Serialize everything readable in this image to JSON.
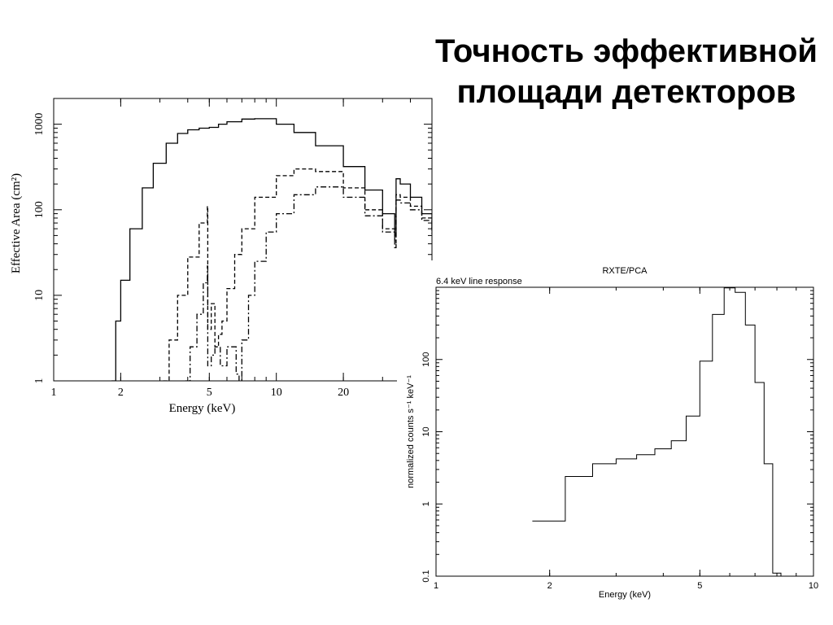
{
  "slide": {
    "title_line1": "Точность эффективной",
    "title_line2": "площади детекторов"
  },
  "chart_data": [
    {
      "type": "line",
      "title": "",
      "xlabel": "Energy (keV)",
      "ylabel": "Effective Area (cm²)",
      "xscale": "log",
      "yscale": "log",
      "xlim": [
        1,
        50
      ],
      "ylim": [
        1,
        2000
      ],
      "xticks": [
        1,
        2,
        5,
        10,
        20
      ],
      "yticks": [
        1,
        10,
        100,
        1000
      ],
      "grid": false,
      "series": [
        {
          "style": "solid",
          "x": [
            1.82,
            1.9,
            2.0,
            2.2,
            2.5,
            2.8,
            3.2,
            3.6,
            4.0,
            4.5,
            5.0,
            5.5,
            6.0,
            7.0,
            8.0,
            10.0,
            12.0,
            15.0,
            20.0,
            25.0,
            30.0,
            34.0,
            34.5,
            36.0,
            40.0,
            45.0,
            50.0
          ],
          "y": [
            1.0,
            5.0,
            15.0,
            60.0,
            180.0,
            350.0,
            600.0,
            780.0,
            860.0,
            900.0,
            920.0,
            1000.0,
            1070.0,
            1150.0,
            1160.0,
            1000.0,
            800.0,
            560.0,
            320.0,
            170.0,
            90.0,
            50.0,
            230.0,
            200.0,
            140.0,
            90.0,
            60.0
          ]
        },
        {
          "style": "dashed",
          "x": [
            3.1,
            3.3,
            3.6,
            4.0,
            4.5,
            4.9,
            4.92,
            5.1,
            5.3,
            5.5,
            5.7,
            6.0,
            6.5,
            7.0,
            8.0,
            10.0,
            12.0,
            15.0,
            20.0,
            25.0,
            30.0,
            34.0,
            34.5,
            36.0,
            40.0,
            45.0,
            50.0
          ],
          "y": [
            1.0,
            3.0,
            10.0,
            28.0,
            70.0,
            110.0,
            4.0,
            8.0,
            2.5,
            3.5,
            5.0,
            12.0,
            30.0,
            60.0,
            140.0,
            250.0,
            300.0,
            280.0,
            180.0,
            100.0,
            60.0,
            40.0,
            150.0,
            140.0,
            110.0,
            80.0,
            55.0
          ]
        },
        {
          "style": "dash-dot",
          "x": [
            3.9,
            4.1,
            4.4,
            4.7,
            4.9,
            4.92,
            5.1,
            5.3,
            5.6,
            6.0,
            6.6,
            6.8,
            7.0,
            7.5,
            8.0,
            9.0,
            10.0,
            12.0,
            15.0,
            20.0,
            25.0,
            30.0,
            34.0,
            34.5,
            36.0,
            40.0,
            45.0,
            50.0
          ],
          "y": [
            1.0,
            2.5,
            6.0,
            14.0,
            22.0,
            1.5,
            2.0,
            2.5,
            1.5,
            2.5,
            1.2,
            1.0,
            3.0,
            10.0,
            25.0,
            55.0,
            90.0,
            150.0,
            185.0,
            140.0,
            85.0,
            55.0,
            36.0,
            130.0,
            120.0,
            100.0,
            75.0,
            50.0
          ]
        }
      ]
    },
    {
      "type": "line",
      "step": true,
      "title": "RXTE/PCA",
      "subtitle": "6.4 keV line response",
      "xlabel": "Energy (keV)",
      "ylabel": "normalized counts s⁻¹ keV⁻¹",
      "xscale": "log",
      "yscale": "log",
      "xlim": [
        1,
        10
      ],
      "ylim": [
        0.1,
        1000
      ],
      "xticks": [
        1,
        2,
        5,
        10
      ],
      "yticks": [
        0.1,
        1,
        10,
        100
      ],
      "grid": false,
      "series": [
        {
          "edges": [
            1.8,
            2.2,
            2.6,
            3.0,
            3.4,
            3.8,
            4.2,
            4.6,
            5.0,
            5.4,
            5.8,
            6.2,
            6.6,
            7.0,
            7.4,
            7.8,
            8.2,
            8.6
          ],
          "values": [
            0.58,
            2.4,
            3.6,
            4.2,
            4.8,
            5.8,
            7.5,
            16.5,
            95.0,
            420.0,
            980.0,
            850.0,
            300.0,
            48.0,
            3.6,
            0.11,
            0.0
          ]
        }
      ]
    }
  ]
}
